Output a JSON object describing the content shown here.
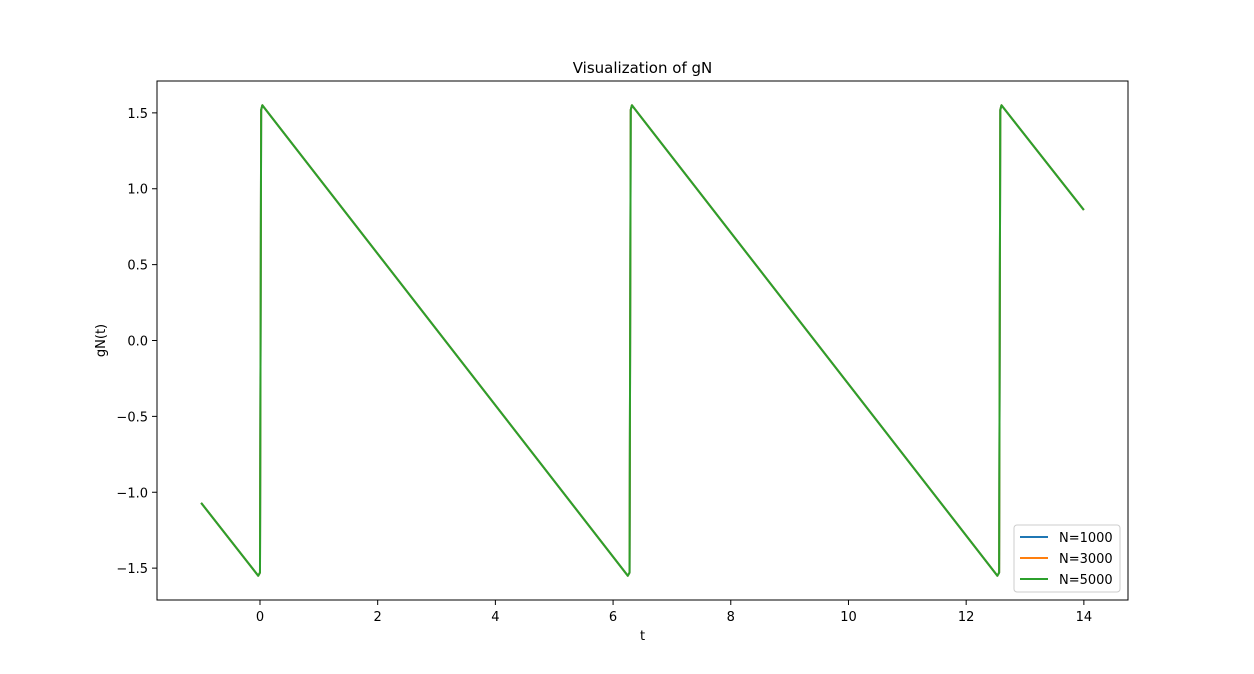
{
  "chart_data": {
    "type": "line",
    "title": "Visualization of gN",
    "xlabel": "t",
    "ylabel": "gN(t)",
    "xlim": [
      -1.75,
      14.75
    ],
    "ylim": [
      -1.71,
      1.71
    ],
    "xticks": [
      0,
      2,
      4,
      6,
      8,
      10,
      12,
      14
    ],
    "yticks": [
      -1.5,
      -1.0,
      -0.5,
      0.0,
      0.5,
      1.0,
      1.5
    ],
    "ytick_labels": [
      "−1.5",
      "−1.0",
      "−0.5",
      "0.0",
      "0.5",
      "1.0",
      "1.5"
    ],
    "grid": false,
    "legend_position": "lower-right",
    "x_range": [
      -1,
      14
    ],
    "series": [
      {
        "name": "N=1000",
        "color": "#1f77b4"
      },
      {
        "name": "N=3000",
        "color": "#ff7f0e"
      },
      {
        "name": "N=5000",
        "color": "#2ca02c"
      }
    ],
    "curve_points": [
      [
        -1.0,
        -1.07
      ],
      [
        -0.03,
        -1.55
      ],
      [
        0.0,
        -1.53
      ],
      [
        0.01,
        0.0
      ],
      [
        0.02,
        1.52
      ],
      [
        0.04,
        1.55
      ],
      [
        6.25,
        -1.55
      ],
      [
        6.28,
        -1.53
      ],
      [
        6.29,
        0.0
      ],
      [
        6.3,
        1.52
      ],
      [
        6.32,
        1.55
      ],
      [
        12.53,
        -1.55
      ],
      [
        12.56,
        -1.53
      ],
      [
        12.57,
        0.0
      ],
      [
        12.58,
        1.52
      ],
      [
        12.6,
        1.55
      ],
      [
        14.0,
        0.86
      ]
    ]
  }
}
